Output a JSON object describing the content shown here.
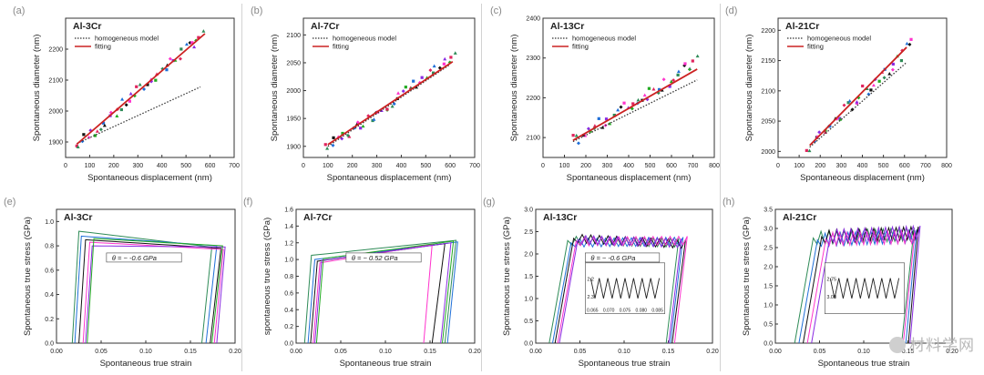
{
  "watermark": "材料学网",
  "colors": {
    "text": "#222222",
    "axis": "#333333",
    "fit": "#cc2222",
    "model": "#333333",
    "pts": [
      "#e0245e",
      "#2e8b57",
      "#1f6fd8",
      "#111111",
      "#ff33cc",
      "#8a2be2",
      "#22aa22"
    ]
  },
  "chart_data": [
    {
      "id": "a",
      "panel_label": "(a)",
      "type": "scatter",
      "title": "Al-3Cr",
      "xlabel": "Spontaneous displacement (nm)",
      "ylabel": "Spontaneous diameter (nm)",
      "xlim": [
        0,
        750
      ],
      "ylim": [
        1850,
        2300
      ],
      "xticks": [
        "0",
        "100",
        "200",
        "300",
        "400",
        "500",
        "600",
        "700"
      ],
      "yticks": [
        "1900",
        "2000",
        "2100",
        "2200"
      ],
      "legend": [
        {
          "label": "homogeneous model",
          "style": "dotted"
        },
        {
          "label": "fitting",
          "style": "solid"
        }
      ],
      "lines": {
        "model": {
          "x": [
            50,
            600
          ],
          "y": [
            1895,
            2078
          ]
        },
        "fit": {
          "x": [
            50,
            620
          ],
          "y": [
            1893,
            2250
          ]
        }
      },
      "scatter_range": {
        "x": [
          50,
          610
        ],
        "y_from": [
          1885,
          2250
        ],
        "n": 44,
        "spread": 18
      }
    },
    {
      "id": "b",
      "panel_label": "(b)",
      "type": "scatter",
      "title": "Al-7Cr",
      "xlabel": "Spontaneous displacement (nm)",
      "ylabel": "Spontaneous diameter (nm)",
      "xlim": [
        0,
        700
      ],
      "ylim": [
        1880,
        2130
      ],
      "xticks": [
        "0",
        "100",
        "200",
        "300",
        "400",
        "500",
        "600",
        "700"
      ],
      "yticks": [
        "1900",
        "1950",
        "2000",
        "2050",
        "2100"
      ],
      "legend": [
        {
          "label": "homogeneous model",
          "style": "dotted"
        },
        {
          "label": "fitting",
          "style": "solid"
        }
      ],
      "lines": {
        "model": {
          "x": [
            100,
            600
          ],
          "y": [
            1900,
            2047
          ]
        },
        "fit": {
          "x": [
            100,
            610
          ],
          "y": [
            1903,
            2052
          ]
        }
      },
      "scatter_range": {
        "x": [
          95,
          615
        ],
        "y_from": [
          1895,
          2060
        ],
        "n": 44,
        "spread": 9
      }
    },
    {
      "id": "c",
      "panel_label": "(c)",
      "type": "scatter",
      "title": "Al-13Cr",
      "xlabel": "Spontaneous displacement (nm)",
      "ylabel": "Spontaneous diameter (nm)",
      "xlim": [
        0,
        800
      ],
      "ylim": [
        2050,
        2400
      ],
      "xticks": [
        "0",
        "100",
        "200",
        "300",
        "400",
        "500",
        "600",
        "700",
        "800"
      ],
      "yticks": [
        "2100",
        "2200",
        "2300",
        "2400"
      ],
      "legend": [
        {
          "label": "homogeneous model",
          "style": "dotted"
        },
        {
          "label": "fitting",
          "style": "solid"
        }
      ],
      "lines": {
        "model": {
          "x": [
            140,
            720
          ],
          "y": [
            2090,
            2245
          ]
        },
        "fit": {
          "x": [
            140,
            720
          ],
          "y": [
            2093,
            2272
          ]
        }
      },
      "scatter_range": {
        "x": [
          140,
          720
        ],
        "y_from": [
          2090,
          2290
        ],
        "n": 44,
        "spread": 16
      }
    },
    {
      "id": "d",
      "panel_label": "(d)",
      "type": "scatter",
      "title": "Al-21Cr",
      "xlabel": "Spontaneous displacement (nm)",
      "ylabel": "Spontaneous diameter (nm)",
      "xlim": [
        0,
        800
      ],
      "ylim": [
        1990,
        2220
      ],
      "xticks": [
        "0",
        "100",
        "200",
        "300",
        "400",
        "500",
        "600",
        "700",
        "800"
      ],
      "yticks": [
        "2000",
        "2050",
        "2100",
        "2150",
        "2200"
      ],
      "legend": [
        {
          "label": "homogeneous model",
          "style": "dotted"
        },
        {
          "label": "fitting",
          "style": "solid"
        }
      ],
      "lines": {
        "model": {
          "x": [
            150,
            610
          ],
          "y": [
            2007,
            2147
          ]
        },
        "fit": {
          "x": [
            150,
            610
          ],
          "y": [
            2010,
            2172
          ]
        }
      },
      "scatter_range": {
        "x": [
          140,
          630
        ],
        "y_from": [
          2005,
          2175
        ],
        "n": 40,
        "spread": 12
      }
    },
    {
      "id": "e",
      "panel_label": "(e)",
      "type": "line",
      "title": "Al-3Cr",
      "xlabel": "Spontaneous true strain",
      "ylabel": "Spontaneous true stress (GPa)",
      "xlim": [
        -0.015,
        0.2
      ],
      "ylim": [
        0,
        1.1
      ],
      "xticks": [
        "0.00",
        "0.05",
        "0.10",
        "0.15",
        "0.20"
      ],
      "yticks": [
        "0.0",
        "0.2",
        "0.4",
        "0.6",
        "0.8",
        "1.0"
      ],
      "annotation": "θ = ~ -0.6 GPa",
      "series": [
        {
          "peak_x": 0.012,
          "peak_y": 0.92,
          "end_x": 0.172,
          "end_y": 0.79,
          "unload_to": 0.16
        },
        {
          "peak_x": 0.015,
          "peak_y": 0.88,
          "end_x": 0.178,
          "end_y": 0.8,
          "unload_to": 0.165
        },
        {
          "peak_x": 0.02,
          "peak_y": 0.85,
          "end_x": 0.183,
          "end_y": 0.78,
          "unload_to": 0.17
        },
        {
          "peak_x": 0.025,
          "peak_y": 0.83,
          "end_x": 0.186,
          "end_y": 0.77,
          "unload_to": 0.175
        },
        {
          "peak_x": 0.028,
          "peak_y": 0.8,
          "end_x": 0.188,
          "end_y": 0.79,
          "unload_to": 0.178
        },
        {
          "peak_x": 0.03,
          "peak_y": 0.86,
          "end_x": 0.185,
          "end_y": 0.8,
          "unload_to": 0.172
        }
      ]
    },
    {
      "id": "f",
      "panel_label": "(f)",
      "type": "line",
      "title": "Al-7Cr",
      "xlabel": "Spontaneous true strain",
      "ylabel": "spontaneous true stress (GPa)",
      "xlim": [
        -0.01,
        0.2
      ],
      "ylim": [
        0,
        1.6
      ],
      "xticks": [
        "0.00",
        "0.05",
        "0.10",
        "0.15",
        "0.20"
      ],
      "yticks": [
        "0.0",
        "0.2",
        "0.4",
        "0.6",
        "0.8",
        "1.0",
        "1.2",
        "1.4",
        "1.6"
      ],
      "annotation": "θ = ~ 0.52 GPa",
      "series": [
        {
          "peak_x": 0.008,
          "peak_y": 1.05,
          "end_x": 0.178,
          "end_y": 1.23,
          "unload_to": 0.165
        },
        {
          "peak_x": 0.012,
          "peak_y": 1.0,
          "end_x": 0.18,
          "end_y": 1.21,
          "unload_to": 0.168
        },
        {
          "peak_x": 0.015,
          "peak_y": 0.98,
          "end_x": 0.165,
          "end_y": 1.19,
          "unload_to": 0.15
        },
        {
          "peak_x": 0.018,
          "peak_y": 0.96,
          "end_x": 0.15,
          "end_y": 1.18,
          "unload_to": 0.14
        },
        {
          "peak_x": 0.02,
          "peak_y": 0.99,
          "end_x": 0.172,
          "end_y": 1.2,
          "unload_to": 0.16
        },
        {
          "peak_x": 0.022,
          "peak_y": 1.01,
          "end_x": 0.175,
          "end_y": 1.22,
          "unload_to": 0.162
        }
      ]
    },
    {
      "id": "g",
      "panel_label": "(g)",
      "type": "line",
      "title": "Al-13Cr",
      "xlabel": "Spontaneous true strain",
      "ylabel": "Spontaneous true stress (GPa)",
      "xlim": [
        -0.01,
        0.2
      ],
      "ylim": [
        0,
        3.0
      ],
      "xticks": [
        "0.00",
        "0.05",
        "0.10",
        "0.15",
        "0.20"
      ],
      "yticks": [
        "0.0",
        "0.5",
        "1.0",
        "1.5",
        "2.0",
        "2.5",
        "3.0"
      ],
      "annotation": "θ = ~ -0.6 GPa",
      "series": [
        {
          "peak_x": 0.028,
          "peak_y": 2.3,
          "end_x": 0.16,
          "end_y": 2.25,
          "unload_to": 0.145
        },
        {
          "peak_x": 0.032,
          "peak_y": 2.25,
          "end_x": 0.165,
          "end_y": 2.28,
          "unload_to": 0.15
        },
        {
          "peak_x": 0.035,
          "peak_y": 2.35,
          "end_x": 0.168,
          "end_y": 2.22,
          "unload_to": 0.152
        },
        {
          "peak_x": 0.038,
          "peak_y": 2.28,
          "end_x": 0.17,
          "end_y": 2.3,
          "unload_to": 0.155
        },
        {
          "peak_x": 0.04,
          "peak_y": 2.32,
          "end_x": 0.163,
          "end_y": 2.24,
          "unload_to": 0.148
        }
      ],
      "inset": {
        "yticks": [
          "2.2",
          "2.3"
        ],
        "xticks": [
          "0.065",
          "0.070",
          "0.075",
          "0.080",
          "0.085"
        ]
      }
    },
    {
      "id": "h",
      "panel_label": "(h)",
      "type": "line",
      "title": "Al-21Cr",
      "xlabel": "Spontaneous true strain",
      "ylabel": "Spontaneous true stress (GPa)",
      "xlim": [
        -0.01,
        0.2
      ],
      "ylim": [
        0,
        3.5
      ],
      "xticks": [
        "0.00",
        "0.05",
        "0.10",
        "0.15",
        "0.20"
      ],
      "yticks": [
        "0.0",
        "0.5",
        "1.0",
        "1.5",
        "2.0",
        "2.5",
        "3.0",
        "3.5"
      ],
      "series": [
        {
          "peak_x": 0.035,
          "peak_y": 2.75,
          "end_x": 0.155,
          "end_y": 2.85,
          "unload_to": 0.14
        },
        {
          "peak_x": 0.04,
          "peak_y": 2.7,
          "end_x": 0.158,
          "end_y": 2.8,
          "unload_to": 0.145
        },
        {
          "peak_x": 0.045,
          "peak_y": 2.78,
          "end_x": 0.16,
          "end_y": 2.88,
          "unload_to": 0.148
        },
        {
          "peak_x": 0.05,
          "peak_y": 2.72,
          "end_x": 0.156,
          "end_y": 2.78,
          "unload_to": 0.142
        },
        {
          "peak_x": 0.055,
          "peak_y": 2.8,
          "end_x": 0.162,
          "end_y": 2.9,
          "unload_to": 0.15
        }
      ],
      "inset": {
        "yticks": [
          "2.75",
          "3.00"
        ],
        "xticks": []
      }
    }
  ]
}
